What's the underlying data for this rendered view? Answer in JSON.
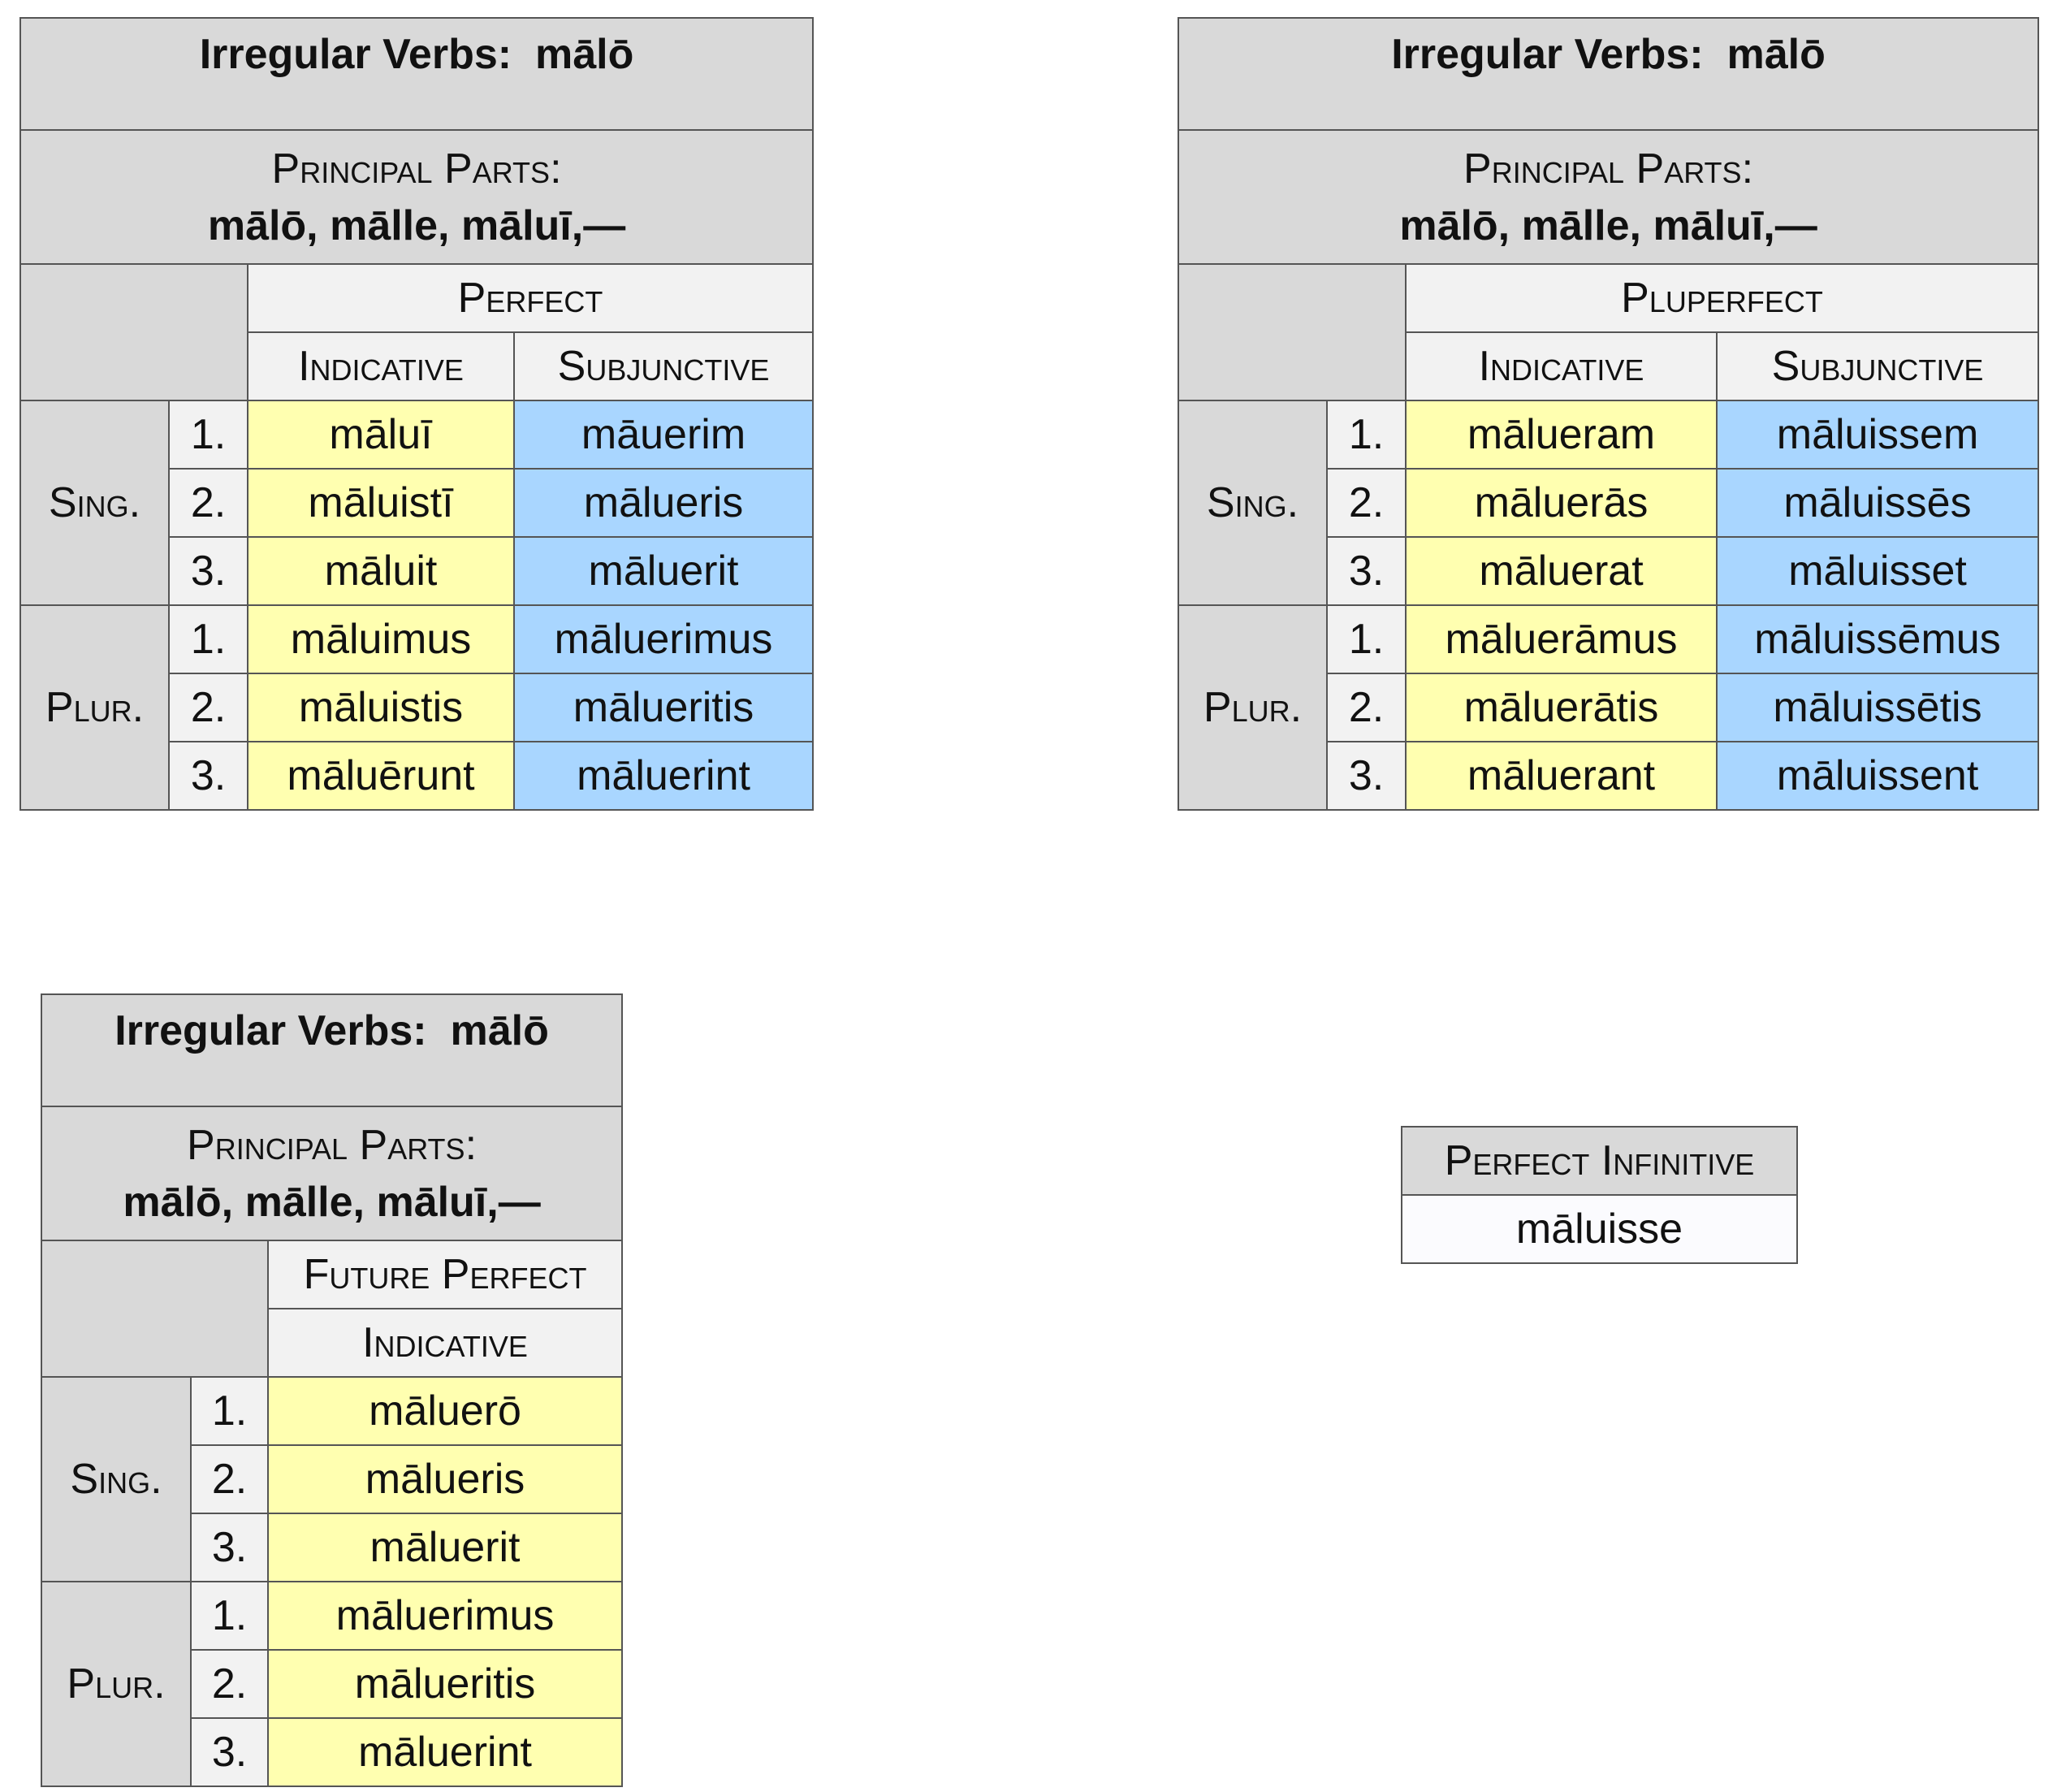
{
  "tables": [
    {
      "title": "Irregular Verbs:  mālō",
      "principal_parts_label": "Principal Parts:",
      "principal_parts": "mālō, mālle, māluī,—",
      "tense": "Perfect",
      "moods": [
        "Indicative",
        "Subjunctive"
      ],
      "numbers": [
        "Sing.",
        "Plur."
      ],
      "persons": [
        "1.",
        "2.",
        "3.",
        "1.",
        "2.",
        "3."
      ],
      "rows": [
        [
          "māluī",
          "māuerim"
        ],
        [
          "māluistī",
          "mālueris"
        ],
        [
          "māluit",
          "māluerit"
        ],
        [
          "māluimus",
          "māluerimus"
        ],
        [
          "māluistis",
          "mālueritis"
        ],
        [
          "māluērunt",
          "māluerint"
        ]
      ]
    },
    {
      "title": "Irregular Verbs:  mālō",
      "principal_parts_label": "Principal Parts:",
      "principal_parts": "mālō, mālle, māluī,—",
      "tense": "Pluperfect",
      "moods": [
        "Indicative",
        "Subjunctive"
      ],
      "numbers": [
        "Sing.",
        "Plur."
      ],
      "persons": [
        "1.",
        "2.",
        "3.",
        "1.",
        "2.",
        "3."
      ],
      "rows": [
        [
          "mālueram",
          "māluissem"
        ],
        [
          "māluerās",
          "māluissēs"
        ],
        [
          "māluerat",
          "māluisset"
        ],
        [
          "māluerāmus",
          "māluissēmus"
        ],
        [
          "māluerātis",
          "māluissētis"
        ],
        [
          "māluerant",
          "māluissent"
        ]
      ]
    },
    {
      "title": "Irregular Verbs:  mālō",
      "principal_parts_label": "Principal Parts:",
      "principal_parts": "mālō, mālle, māluī,—",
      "tense": "Future Perfect",
      "moods": [
        "Indicative"
      ],
      "numbers": [
        "Sing.",
        "Plur."
      ],
      "persons": [
        "1.",
        "2.",
        "3.",
        "1.",
        "2.",
        "3."
      ],
      "rows": [
        [
          "māluerō"
        ],
        [
          "mālueris"
        ],
        [
          "māluerit"
        ],
        [
          "māluerimus"
        ],
        [
          "mālueritis"
        ],
        [
          "māluerint"
        ]
      ]
    }
  ],
  "infinitive": {
    "label": "Perfect Infinitive",
    "value": "māluisse"
  }
}
